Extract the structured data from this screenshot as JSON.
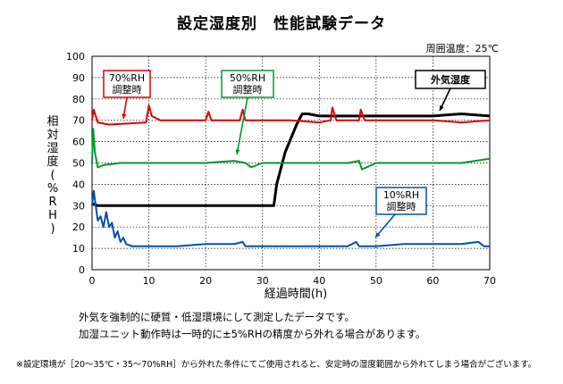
{
  "title": "設定湿度別　性能試験データ",
  "condition": "周囲温度：25℃",
  "notes": [
    "外気を強制的に硬質・低湿環境にして測定したデータです。",
    "加湿ユニット動作時は一時的に±5%RHの精度から外れる場合があります。"
  ],
  "footnote": "※設定環境が［20～35℃・35～70%RH］から外れた条件にてご使用されると、安定時の湿度範囲から外れてしまう場合がございます。",
  "chart_data": {
    "type": "line",
    "xlabel": "経過時間(h)",
    "ylabel": "相対湿度(%RH)",
    "xlim": [
      0,
      70
    ],
    "ylim": [
      0,
      100
    ],
    "xticks": [
      0,
      10,
      20,
      30,
      40,
      50,
      60,
      70
    ],
    "yticks": [
      0,
      10,
      20,
      30,
      40,
      50,
      60,
      70,
      80,
      90,
      100
    ],
    "grid": true,
    "series": [
      {
        "name": "外気湿度",
        "color": "#000000",
        "x": [
          0,
          1,
          5,
          10,
          15,
          20,
          25,
          30,
          32,
          32.5,
          34,
          36,
          37,
          38,
          40,
          45,
          50,
          55,
          60,
          65,
          70
        ],
        "y": [
          31,
          30,
          30,
          30,
          30,
          30,
          30,
          30,
          30,
          40,
          55,
          68,
          73,
          73,
          72,
          72,
          72,
          72,
          72,
          73,
          72
        ]
      },
      {
        "name": "70%RH\n調整時",
        "color": "#e00000",
        "x": [
          0,
          0.3,
          1,
          3,
          9.5,
          10,
          10.5,
          12,
          20,
          20.5,
          21,
          25,
          26,
          26.5,
          27,
          30,
          35,
          40,
          42,
          42.3,
          43,
          47,
          47.3,
          48,
          55,
          60,
          65,
          70
        ],
        "y": [
          70,
          75,
          69,
          68,
          69,
          77,
          72,
          70,
          70,
          74,
          70,
          70,
          70,
          75,
          70,
          70,
          70,
          69,
          70,
          76,
          70,
          70,
          75,
          70,
          70,
          70,
          69,
          70
        ]
      },
      {
        "name": "50%RH\n調整時",
        "color": "#00982e",
        "x": [
          0,
          0.2,
          0.5,
          1,
          2,
          5,
          10,
          20,
          25,
          27,
          28,
          30,
          31,
          35,
          40,
          45,
          47,
          47.5,
          50,
          55,
          60,
          65,
          70
        ],
        "y": [
          50,
          66,
          55,
          48,
          49,
          50,
          50,
          50,
          51,
          50,
          48,
          50,
          50,
          50,
          50,
          50,
          51,
          47,
          50,
          50,
          50,
          50,
          52
        ]
      },
      {
        "name": "10%RH\n調整時",
        "color": "#0050b0",
        "x": [
          0,
          0.3,
          0.6,
          1,
          1.5,
          2,
          2.5,
          3,
          3.5,
          4,
          4.5,
          5,
          5.5,
          6,
          7,
          8,
          10,
          15,
          20,
          25,
          26.5,
          27,
          30,
          35,
          40,
          45,
          46.5,
          47,
          50,
          55,
          60,
          65,
          68,
          69,
          70
        ],
        "y": [
          30,
          37,
          31,
          23,
          25,
          20,
          27,
          20,
          22,
          15,
          18,
          13,
          15,
          12,
          11,
          11,
          11,
          11,
          12,
          12,
          13,
          11,
          11,
          11,
          11,
          11,
          13,
          11,
          11,
          12,
          12,
          12,
          13,
          11,
          11
        ]
      }
    ]
  }
}
